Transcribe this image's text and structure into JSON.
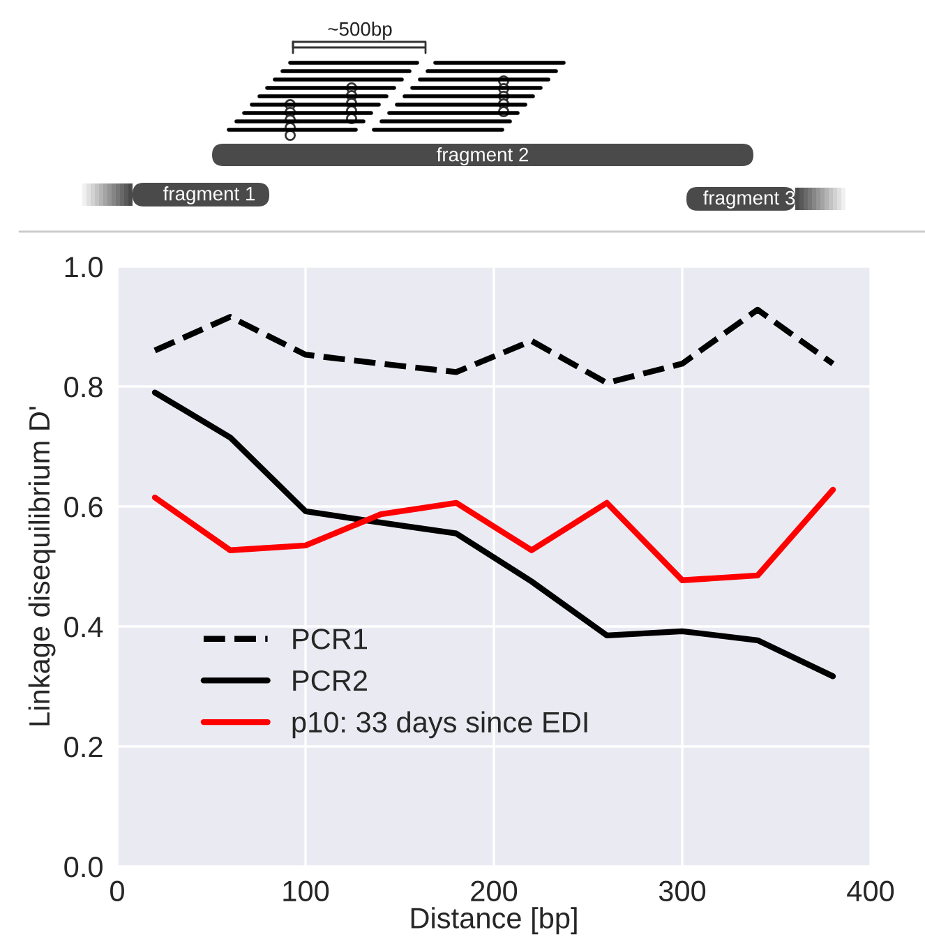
{
  "chart_data": {
    "type": "line",
    "xlabel": "Distance [bp]",
    "ylabel": "Linkage disequilibrium D'",
    "x": [
      20,
      60,
      100,
      140,
      180,
      220,
      260,
      300,
      340,
      380
    ],
    "series": [
      {
        "name": "PCR1",
        "color": "#000000",
        "line_style": "dashed",
        "values": [
          0.86,
          0.916,
          0.853,
          0.838,
          0.824,
          0.876,
          0.806,
          0.838,
          0.928,
          0.838
        ]
      },
      {
        "name": "PCR2",
        "color": "#000000",
        "line_style": "solid",
        "values": [
          0.79,
          0.715,
          0.592,
          0.573,
          0.555,
          0.475,
          0.385,
          0.392,
          0.377,
          0.317
        ]
      },
      {
        "name": "p10: 33 days since EDI",
        "color": "#ff0000",
        "line_style": "solid",
        "values": [
          0.615,
          0.527,
          0.535,
          0.587,
          0.606,
          0.527,
          0.606,
          0.477,
          0.485,
          0.628
        ]
      }
    ],
    "xlim": [
      0,
      400
    ],
    "xticks": [
      0,
      100,
      200,
      300,
      400
    ],
    "ylim": [
      0,
      1.0
    ],
    "yticks": [
      {
        "value": 0,
        "label": "0.0"
      },
      {
        "value": 0.2,
        "label": "0.2"
      },
      {
        "value": 0.4,
        "label": "0.4"
      },
      {
        "value": 0.6,
        "label": "0.6"
      },
      {
        "value": 0.8,
        "label": "0.8"
      },
      {
        "value": 1.0,
        "label": "1.0"
      }
    ],
    "grid": true,
    "legend": "lower left",
    "marker": "none",
    "annotations": [
      "~500bp",
      "fragment 2",
      "fragment 1",
      "fragment 3"
    ]
  }
}
